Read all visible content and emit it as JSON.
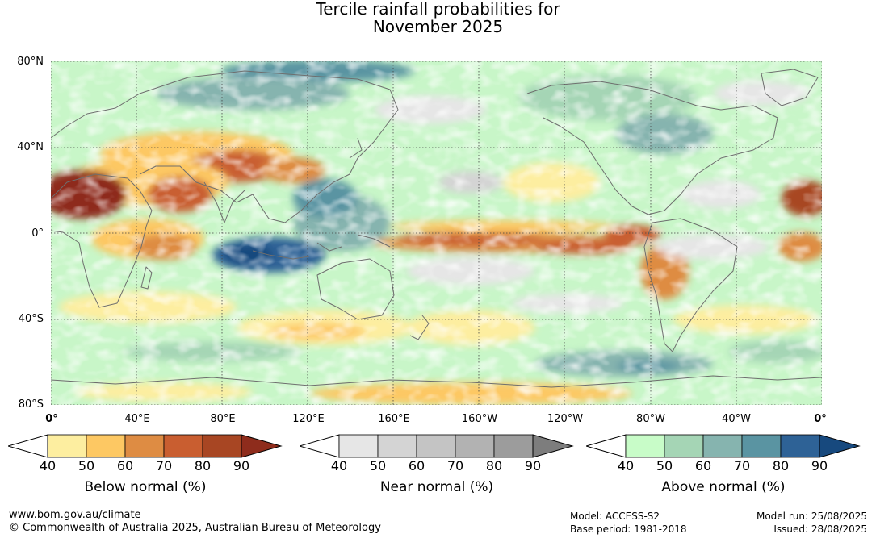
{
  "title": {
    "line1": "Tercile rainfall probabilities for",
    "line2": "November 2025"
  },
  "map": {
    "lat_labels": [
      "80°N",
      "40°N",
      "0°",
      "40°S",
      "80°S"
    ],
    "lon_labels": [
      "0°",
      "40°E",
      "80°E",
      "120°E",
      "160°E",
      "160°W",
      "120°W",
      "80°W",
      "40°W",
      "0°"
    ],
    "colors": {
      "ocean_base": "#c8f6c8",
      "land_outline": "#6e6e6e",
      "grid": "#444444"
    }
  },
  "legends": [
    {
      "id": "below",
      "caption": "Below normal (%)",
      "ticks": [
        "40",
        "50",
        "60",
        "70",
        "80",
        "90"
      ],
      "colors": [
        "#fdeea0",
        "#fdc863",
        "#de8c43",
        "#c95e30",
        "#a84623",
        "#8e2c1c"
      ]
    },
    {
      "id": "near",
      "caption": "Near normal (%)",
      "ticks": [
        "40",
        "50",
        "60",
        "70",
        "80",
        "90"
      ],
      "colors": [
        "#e6e6e6",
        "#d4d4d4",
        "#c4c4c4",
        "#b2b2b2",
        "#9c9c9c",
        "#7d7d7d"
      ]
    },
    {
      "id": "above",
      "caption": "Above normal (%)",
      "ticks": [
        "40",
        "50",
        "60",
        "70",
        "80",
        "90"
      ],
      "colors": [
        "#c8fcc8",
        "#a5d5b5",
        "#86b4af",
        "#5a94a2",
        "#2e6296",
        "#17497e"
      ]
    }
  ],
  "footer": {
    "website": "www.bom.gov.au/climate",
    "copyright": "© Commonwealth of Australia 2025, Australian Bureau of Meteorology",
    "model": "Model: ACCESS-S2",
    "base_period": "Base period: 1981-2018",
    "model_run": "Model run: 25/08/2025",
    "issued": "Issued: 28/08/2025"
  }
}
